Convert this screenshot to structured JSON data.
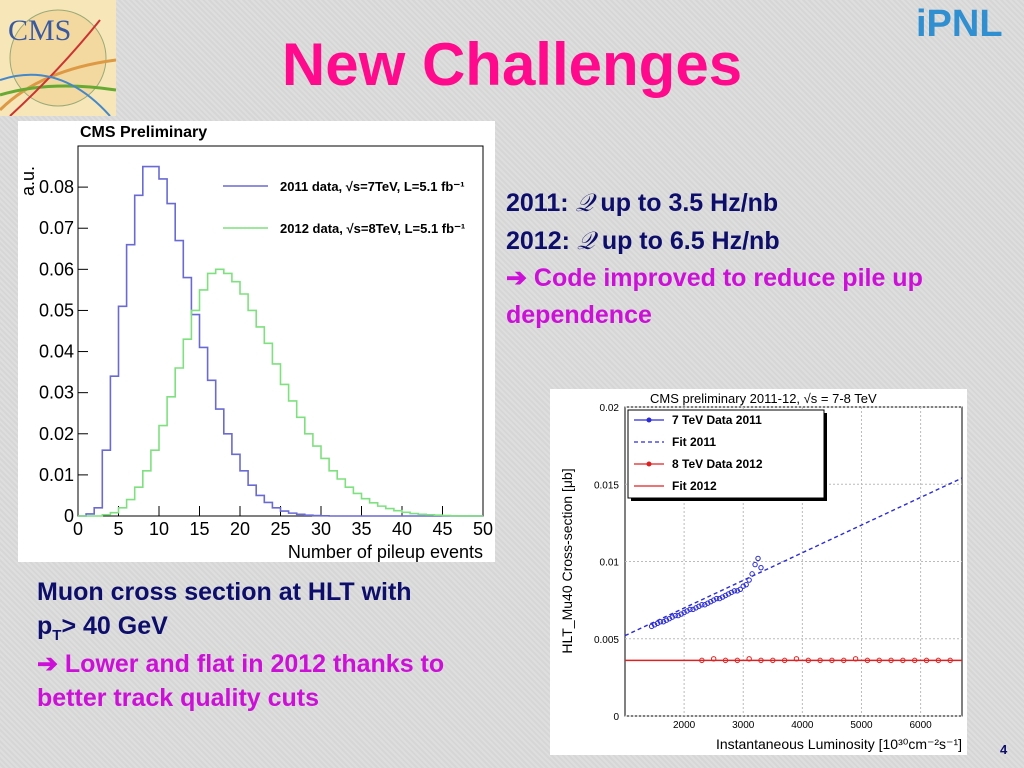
{
  "slide": {
    "title": "New Challenges",
    "page_number": "4",
    "logo_left_text": "CMS",
    "logo_right_text": "iPNL"
  },
  "right_text": {
    "line1_prefix": "2011:",
    "line1_symbol": "𝒬",
    "line1_rest": "up to 3.5 Hz/nb",
    "line2_prefix": "2012:",
    "line2_symbol": "𝒬",
    "line2_rest": "up to 6.5 Hz/nb",
    "arrow": "➔",
    "note_line1": "Code improved to reduce pile up",
    "note_line2": "dependence"
  },
  "left_text": {
    "line1": "Muon cross section at HLT with",
    "line2_pre": "p",
    "line2_sub": "T",
    "line2_post": "> 40 GeV",
    "arrow": "➔",
    "note_line1": "Lower and flat in 2012 thanks to",
    "note_line2": "better track quality cuts"
  },
  "chart_data": [
    {
      "type": "line",
      "title": "CMS Preliminary",
      "xlabel": "Number of pileup events",
      "ylabel": "a.u.",
      "xlim": [
        0,
        50
      ],
      "ylim": [
        0,
        0.09
      ],
      "xticks": [
        "0",
        "5",
        "10",
        "15",
        "20",
        "25",
        "30",
        "35",
        "40",
        "45",
        "50"
      ],
      "yticks": [
        "0",
        "0.01",
        "0.02",
        "0.03",
        "0.04",
        "0.05",
        "0.06",
        "0.07",
        "0.08"
      ],
      "legend_position": "top-right",
      "grid": true,
      "x": [
        0,
        1,
        2,
        3,
        4,
        5,
        6,
        7,
        8,
        9,
        10,
        11,
        12,
        13,
        14,
        15,
        16,
        17,
        18,
        19,
        20,
        21,
        22,
        23,
        24,
        25,
        26,
        27,
        28,
        29,
        30,
        31,
        32,
        33,
        34,
        35,
        36,
        37,
        38,
        39,
        40,
        41,
        42,
        43,
        44,
        45,
        46,
        47,
        48,
        49
      ],
      "series": [
        {
          "name": "2011 data, √s=7TeV, L=5.1 fb⁻¹",
          "color": "#6a6ad4",
          "values": [
            0.0,
            0.0005,
            0.002,
            0.016,
            0.034,
            0.051,
            0.066,
            0.078,
            0.085,
            0.085,
            0.082,
            0.076,
            0.067,
            0.058,
            0.049,
            0.041,
            0.033,
            0.026,
            0.02,
            0.015,
            0.011,
            0.0075,
            0.005,
            0.0033,
            0.002,
            0.0012,
            0.0007,
            0.0004,
            0.0002,
            0.0001,
            5e-05,
            0,
            0,
            0,
            0,
            0,
            0,
            0,
            0,
            0,
            0,
            0,
            0,
            0,
            0,
            0,
            0,
            0,
            0,
            0
          ]
        },
        {
          "name": "2012 data, √s=8TeV, L=5.1 fb⁻¹",
          "color": "#7fe07f",
          "values": [
            0.0,
            0.0,
            0.0,
            0.0003,
            0.0008,
            0.002,
            0.004,
            0.007,
            0.011,
            0.016,
            0.022,
            0.029,
            0.036,
            0.043,
            0.05,
            0.055,
            0.059,
            0.06,
            0.059,
            0.057,
            0.054,
            0.05,
            0.046,
            0.042,
            0.037,
            0.032,
            0.028,
            0.024,
            0.02,
            0.017,
            0.014,
            0.011,
            0.009,
            0.007,
            0.0055,
            0.0042,
            0.0032,
            0.0024,
            0.0018,
            0.0013,
            0.0009,
            0.0006,
            0.0004,
            0.0003,
            0.0002,
            0.0001,
            5e-05,
            2e-05,
            1e-05,
            0
          ]
        }
      ]
    },
    {
      "type": "scatter",
      "title": "CMS preliminary 2011-12,  √s = 7-8 TeV",
      "xlabel": "Instantaneous Luminosity [10³⁰cm⁻²s⁻¹]",
      "ylabel": "HLT_Mu40 Cross-section [μb]",
      "xlim": [
        1000,
        6700
      ],
      "ylim": [
        0,
        0.02
      ],
      "xticks": [
        "2000",
        "3000",
        "4000",
        "5000",
        "6000"
      ],
      "yticks": [
        "0",
        "0.005",
        "0.01",
        "0.015",
        "0.02"
      ],
      "legend_position": "top-left",
      "grid": true,
      "series": [
        {
          "name": "7 TeV Data 2011",
          "color": "#2b2bd9",
          "x": [
            1450,
            1500,
            1550,
            1600,
            1650,
            1700,
            1750,
            1800,
            1850,
            1900,
            1950,
            2000,
            2050,
            2100,
            2150,
            2200,
            2250,
            2300,
            2350,
            2400,
            2450,
            2500,
            2550,
            2600,
            2650,
            2700,
            2750,
            2800,
            2850,
            2900,
            2950,
            3000,
            3050,
            3100,
            3150,
            3200,
            3250,
            3300
          ],
          "y": [
            0.0058,
            0.0059,
            0.006,
            0.0061,
            0.0061,
            0.0062,
            0.0063,
            0.0064,
            0.0065,
            0.0065,
            0.0066,
            0.0067,
            0.0068,
            0.0069,
            0.0069,
            0.007,
            0.0071,
            0.0072,
            0.0072,
            0.0073,
            0.0074,
            0.0075,
            0.0076,
            0.0076,
            0.0077,
            0.0078,
            0.0079,
            0.008,
            0.0081,
            0.0081,
            0.0082,
            0.0084,
            0.0085,
            0.0088,
            0.0092,
            0.0098,
            0.0102,
            0.0096
          ]
        },
        {
          "name": "Fit 2011",
          "color": "#2b2bd9",
          "x": [
            1000,
            6700
          ],
          "y": [
            0.0052,
            0.0154
          ]
        },
        {
          "name": "8 TeV Data 2012",
          "color": "#e02020",
          "x": [
            2300,
            2500,
            2700,
            2900,
            3100,
            3300,
            3500,
            3700,
            3900,
            4100,
            4300,
            4500,
            4700,
            4900,
            5100,
            5300,
            5500,
            5700,
            5900,
            6100,
            6300,
            6500
          ],
          "y": [
            0.0036,
            0.0037,
            0.0036,
            0.0036,
            0.0037,
            0.0036,
            0.0036,
            0.0036,
            0.0037,
            0.0036,
            0.0036,
            0.0036,
            0.0036,
            0.0037,
            0.0036,
            0.0036,
            0.0036,
            0.0036,
            0.0036,
            0.0036,
            0.0036,
            0.0036
          ]
        },
        {
          "name": "Fit 2012",
          "color": "#e02020",
          "x": [
            1000,
            6700
          ],
          "y": [
            0.0036,
            0.0036
          ]
        }
      ]
    }
  ]
}
